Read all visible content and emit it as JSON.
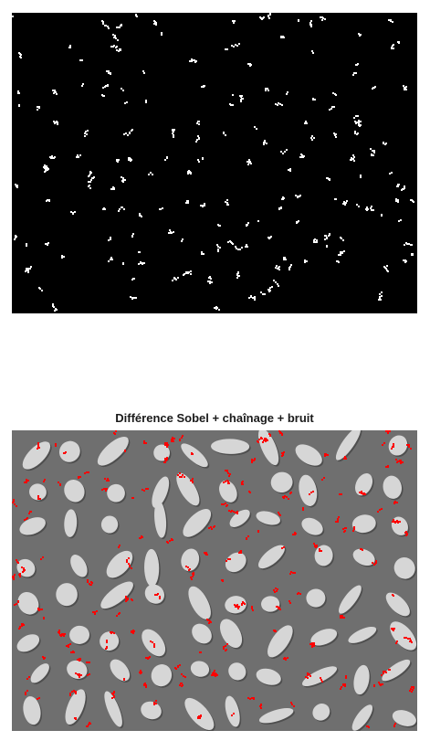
{
  "figure": {
    "top_panel": {
      "title": "",
      "background_color": "#000000",
      "pixel_color": "#ffffff"
    },
    "bottom_panel": {
      "title": "Différence Sobel + chaînage + bruit",
      "background_color": "#6f6f6f",
      "grain_color": "#d6d6d6",
      "grain_shadow_color": "#4e4e4e",
      "marker_color": "#ff0000"
    }
  }
}
